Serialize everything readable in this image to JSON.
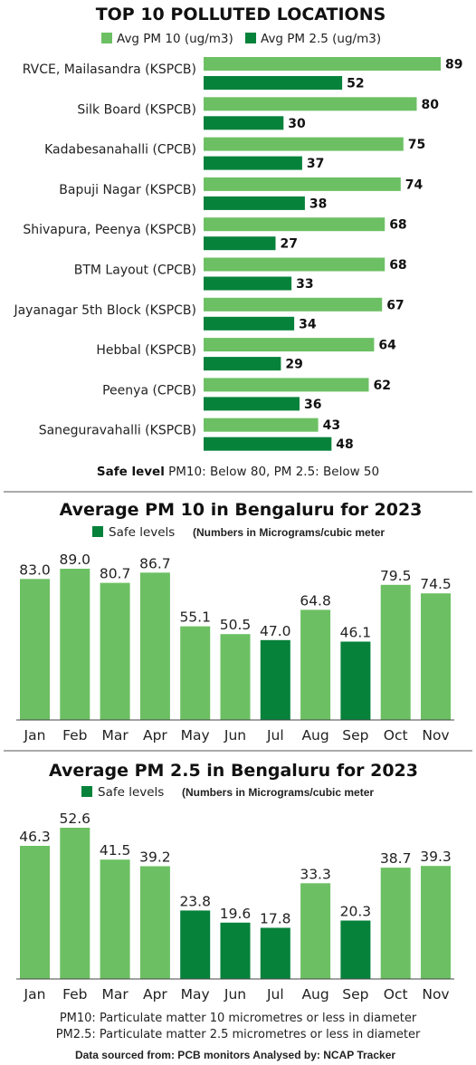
{
  "colors": {
    "light": "#6cc063",
    "dark": "#06823b",
    "rule": "#555555"
  },
  "chart_data": [
    {
      "type": "bar",
      "orientation": "horizontal",
      "title": "TOP 10 POLLUTED LOCATIONS",
      "categories": [
        "RVCE, Mailasandra (KSPCB)",
        "Silk Board (KSPCB)",
        "Kadabesanahalli (CPCB)",
        "Bapuji Nagar (KSPCB)",
        "Shivapura, Peenya (KSPCB)",
        "BTM Layout (CPCB)",
        "Jayanagar 5th Block (KSPCB)",
        "Hebbal (KSPCB)",
        "Peenya (CPCB)",
        "Saneguravahalli (KSPCB)"
      ],
      "series": [
        {
          "name": "Avg PM 10 (ug/m3)",
          "color": "#6cc063",
          "values": [
            89,
            80,
            75,
            74,
            68,
            68,
            67,
            64,
            62,
            43
          ]
        },
        {
          "name": "Avg PM 2.5 (ug/m3)",
          "color": "#06823b",
          "values": [
            52,
            30,
            37,
            38,
            27,
            33,
            34,
            29,
            36,
            48
          ]
        }
      ],
      "xlim": [
        0,
        89
      ],
      "legend": "top",
      "note_bold": "Safe level",
      "note_text": " PM10: Below 80,  PM 2.5: Below 50"
    },
    {
      "type": "bar",
      "title": "Average PM 10 in Bengaluru for 2023",
      "legend_label": "Safe levels",
      "units_note": "(Numbers in Micrograms/cubic meter",
      "categories": [
        "Jan",
        "Feb",
        "Mar",
        "Apr",
        "May",
        "Jun",
        "Jul",
        "Aug",
        "Sep",
        "Oct",
        "Nov"
      ],
      "values": [
        83.0,
        89.0,
        80.7,
        86.7,
        55.1,
        50.5,
        47.0,
        64.8,
        46.1,
        79.5,
        74.5
      ],
      "labels": [
        "83.0",
        "89.0",
        "80.7",
        "86.7",
        "55.1",
        "50.5",
        "47.0",
        "64.8",
        "46.1",
        "79.5",
        "74.5"
      ],
      "safe": [
        false,
        false,
        false,
        false,
        false,
        false,
        true,
        false,
        true,
        false,
        false
      ],
      "ylim": [
        0,
        89
      ]
    },
    {
      "type": "bar",
      "title": "Average PM 2.5 in Bengaluru for 2023",
      "legend_label": "Safe levels",
      "units_note": "(Numbers in Micrograms/cubic meter",
      "categories": [
        "Jan",
        "Feb",
        "Mar",
        "Apr",
        "May",
        "Jun",
        "Jul",
        "Aug",
        "Sep",
        "Oct",
        "Nov"
      ],
      "values": [
        46.3,
        52.6,
        41.5,
        39.2,
        23.8,
        19.6,
        17.8,
        33.3,
        20.3,
        38.7,
        39.3
      ],
      "labels": [
        "46.3",
        "52.6",
        "41.5",
        "39.2",
        "23.8",
        "19.6",
        "17.8",
        "33.3",
        "20.3",
        "38.7",
        "39.3"
      ],
      "safe": [
        false,
        false,
        false,
        false,
        true,
        true,
        true,
        false,
        true,
        false,
        false
      ],
      "ylim": [
        0,
        52.6
      ]
    }
  ],
  "footer": {
    "def1": "PM10: Particulate matter 10 micrometres or less in diameter",
    "def2": "PM2.5: Particulate matter 2.5 micrometres or less in diameter",
    "source": "Data sourced from: PCB monitors Analysed by: NCAP Tracker"
  }
}
